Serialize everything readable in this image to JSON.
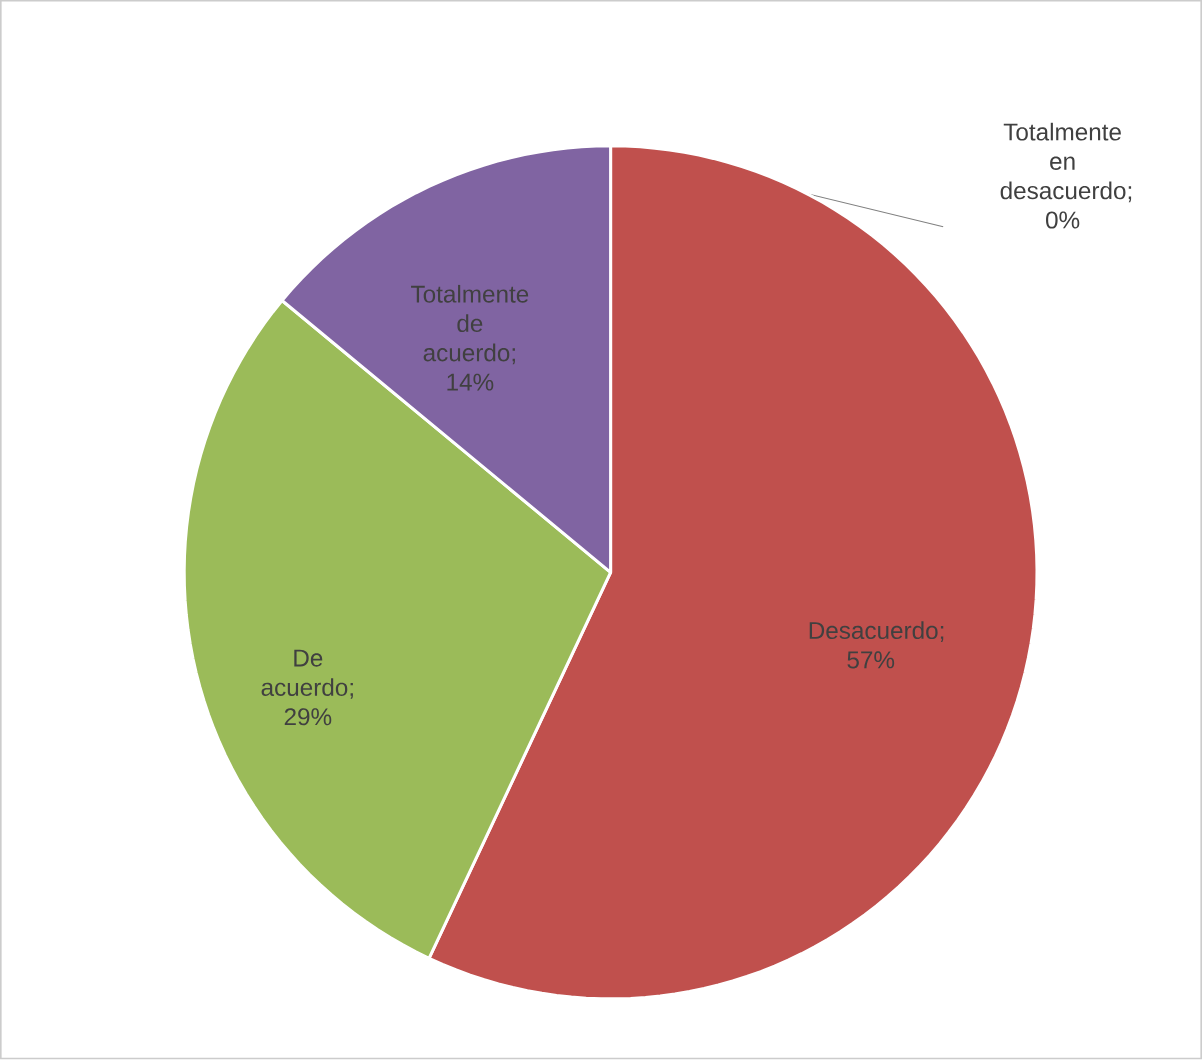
{
  "chart_data": {
    "type": "pie",
    "categories": [
      "Totalmente en desacuerdo",
      "Desacuerdo",
      "De acuerdo",
      "Totalmente de acuerdo"
    ],
    "values": [
      0,
      57,
      29,
      14
    ],
    "colors": [
      "#4f81bd",
      "#c0504d",
      "#9bbb59",
      "#8064a2"
    ],
    "value_labels": [
      "; 0%",
      "; 57%",
      "; 29%",
      "; 14%"
    ]
  }
}
